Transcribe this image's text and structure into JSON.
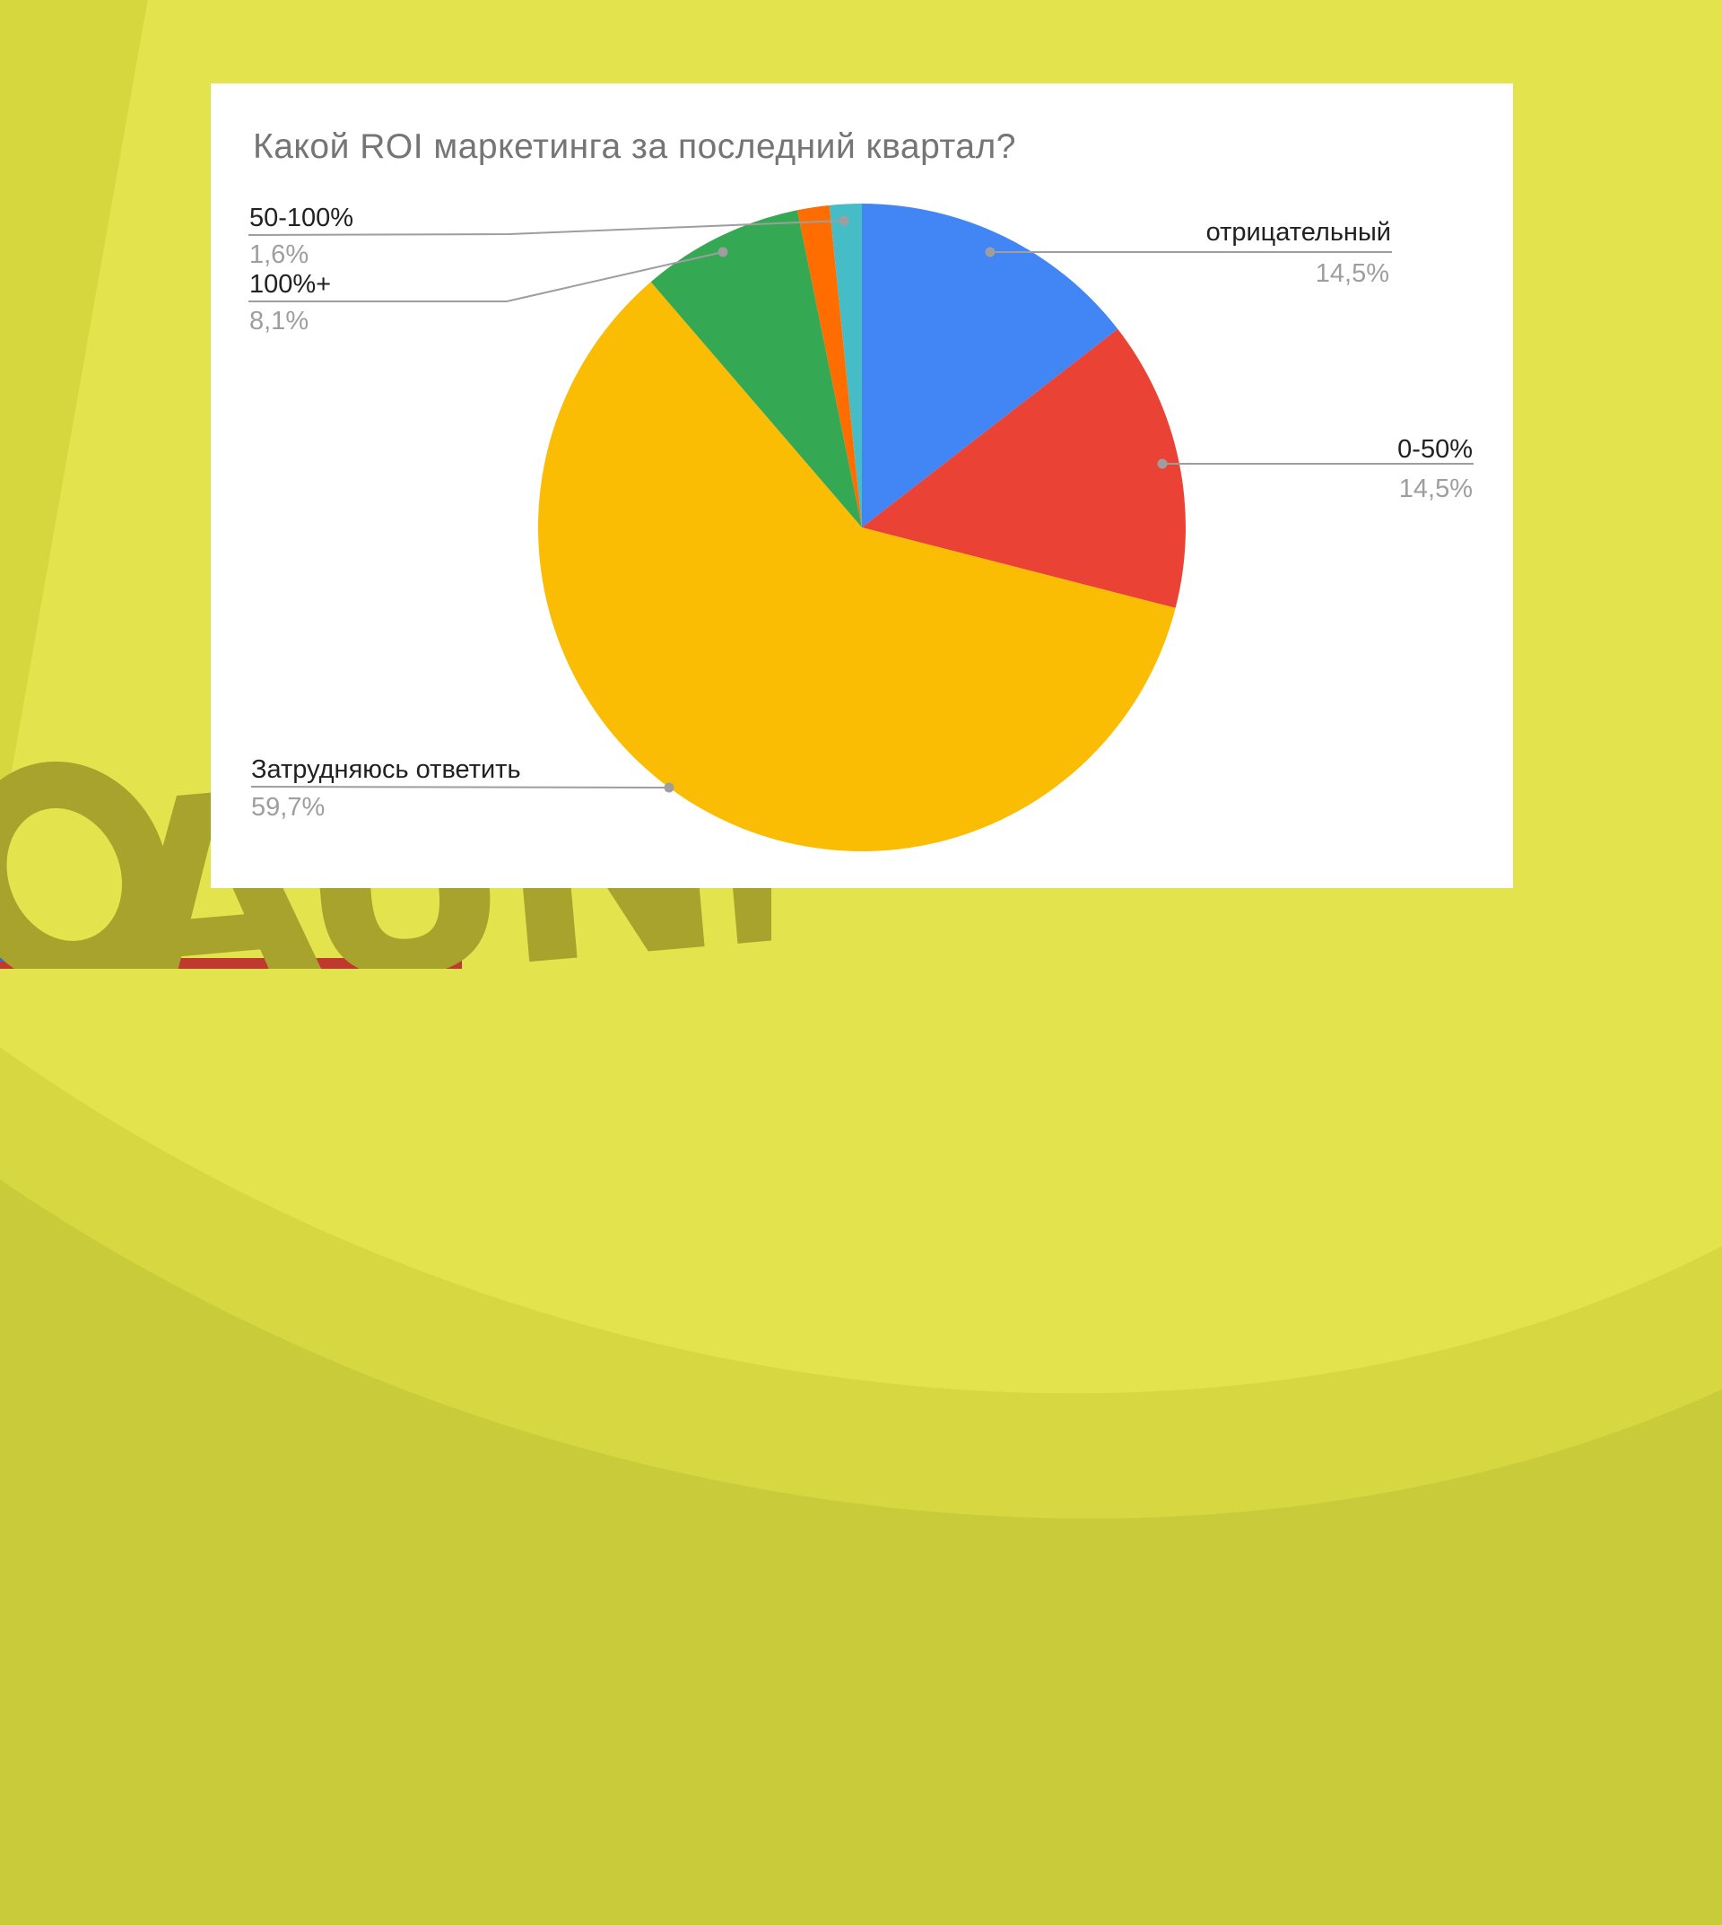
{
  "chart_data": {
    "type": "pie",
    "title": "Какой ROI маркетинга за последний квартал?",
    "unit": "%",
    "legend": "none",
    "labels_position": "outside-with-leader-lines",
    "start_angle_deg": 0,
    "direction": "clockwise",
    "slices": [
      {
        "label": "отрицательный",
        "value": 14.5,
        "value_label": "14,5%",
        "color": "#4285F4"
      },
      {
        "label": "0-50%",
        "value": 14.5,
        "value_label": "14,5%",
        "color": "#EA4335"
      },
      {
        "label": "Затрудняюсь ответить",
        "value": 59.7,
        "value_label": "59,7%",
        "color": "#FBBC04"
      },
      {
        "label": "100%+",
        "value": 8.1,
        "value_label": "8,1%",
        "color": "#34A853"
      },
      {
        "label": "",
        "value": 1.6,
        "value_label": "",
        "color": "#FF6D01"
      },
      {
        "label": "50-100%",
        "value": 1.6,
        "value_label": "1,6%",
        "color": "#46BDC6"
      }
    ],
    "label_text_color": "#212121",
    "percent_text_color": "#9e9e9e",
    "leader_line_color": "#9e9e9e",
    "title_color": "#757575"
  },
  "background": {
    "base_color": "#cacb3a",
    "bright_color": "#e2e34d",
    "mid_color": "#d6d741",
    "watermark_text": "AUNK",
    "watermark_color": "#a7a32d",
    "accent_red": "#c0392f",
    "accent_blue": "#3e68c9",
    "card_color": "#ffffff"
  }
}
